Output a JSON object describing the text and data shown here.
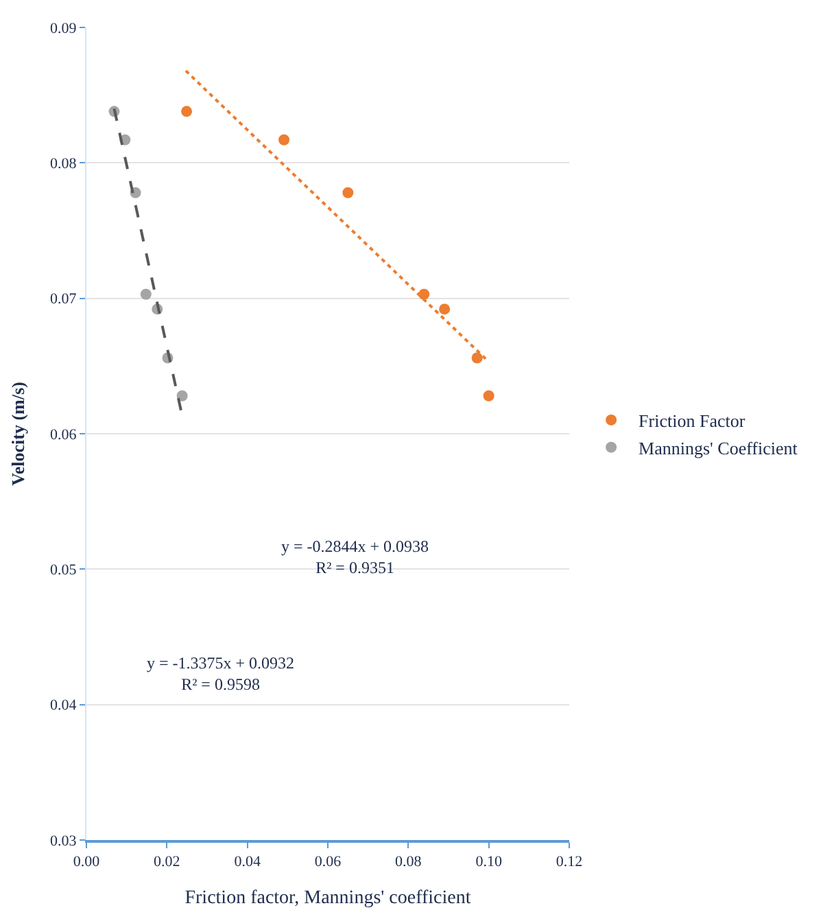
{
  "chart_data": {
    "type": "scatter",
    "xlabel": "Friction factor, Mannings' coefficient",
    "ylabel": "Velocity (m/s)",
    "xlim": [
      0,
      0.12
    ],
    "xticks": [
      {
        "value": 0,
        "label": "0.00"
      },
      {
        "value": 0.02,
        "label": "0.02"
      },
      {
        "value": 0.04,
        "label": "0.04"
      },
      {
        "value": 0.06,
        "label": "0.06"
      },
      {
        "value": 0.08,
        "label": "0.08"
      },
      {
        "value": 0.1,
        "label": "0.10"
      },
      {
        "value": 0.12,
        "label": "0.12"
      }
    ],
    "ylim": [
      0.03,
      0.09
    ],
    "yticks": [
      0.03,
      0.04,
      0.05,
      0.06,
      0.07,
      0.08,
      0.09
    ],
    "grid": "y",
    "legend": "right",
    "series": [
      {
        "name": "Friction Factor",
        "marker": "circle",
        "color": "#ed7d31",
        "x": [
          0.0249,
          0.0491,
          0.065,
          0.0839,
          0.089,
          0.0971,
          0.1
        ],
        "values": [
          0.0838,
          0.0817,
          0.0778,
          0.0703,
          0.0692,
          0.0656,
          0.0628
        ]
      },
      {
        "name": "Mannings' Coefficient",
        "marker": "circle",
        "color": "#a5a5a5",
        "x": [
          0.0069,
          0.0096,
          0.0122,
          0.0148,
          0.0176,
          0.0202,
          0.0238
        ],
        "values": [
          0.0838,
          0.0817,
          0.0778,
          0.0703,
          0.0692,
          0.0656,
          0.0628
        ]
      },
      {
        "type": "line",
        "line_style": "dotted",
        "color": "#ed7d31",
        "x": [
          0.0247,
          0.0997
        ],
        "values": [
          0.0868,
          0.0654
        ]
      },
      {
        "type": "line",
        "line_style": "dashed",
        "color": "#595959",
        "x": [
          0.0069,
          0.0236
        ],
        "values": [
          0.084,
          0.0616
        ]
      }
    ],
    "annotations": [
      "y = -0.2844x + 0.0938\nR² = 0.9351",
      "y = -1.3375x + 0.0932\nR² = 0.9598"
    ]
  }
}
